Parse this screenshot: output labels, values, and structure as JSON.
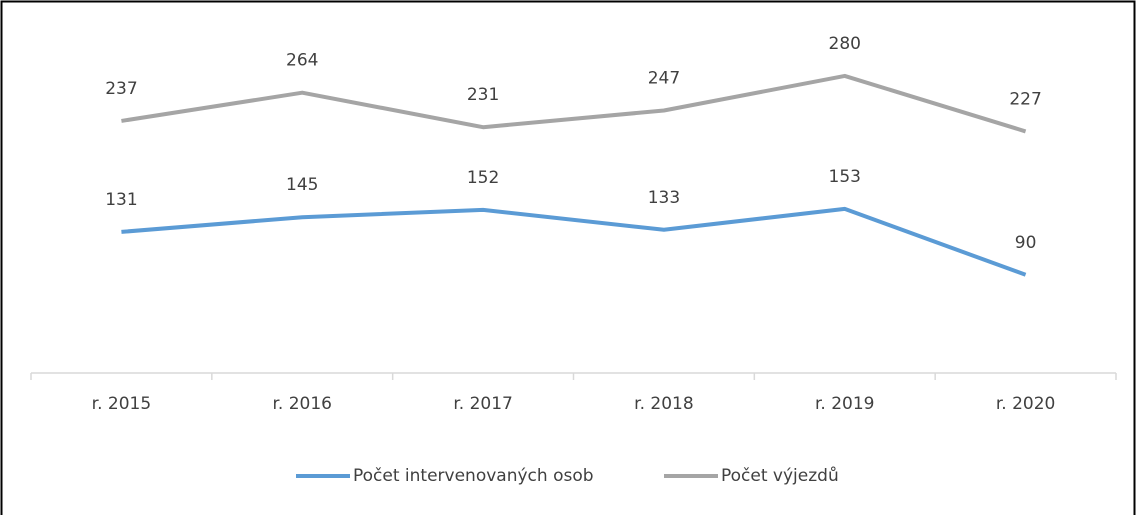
{
  "chart_data": {
    "type": "line",
    "categories": [
      "r. 2015",
      "r. 2016",
      "r. 2017",
      "r. 2018",
      "r. 2019",
      "r. 2020"
    ],
    "series": [
      {
        "name": "Počet intervenovaných osob",
        "color": "#5b9bd5",
        "values": [
          131,
          145,
          152,
          133,
          153,
          90
        ]
      },
      {
        "name": "Počet výjezdů",
        "color": "#a5a5a5",
        "values": [
          237,
          264,
          231,
          247,
          280,
          227
        ]
      }
    ],
    "ylim": [
      0,
      300
    ],
    "legend": "bottom"
  }
}
